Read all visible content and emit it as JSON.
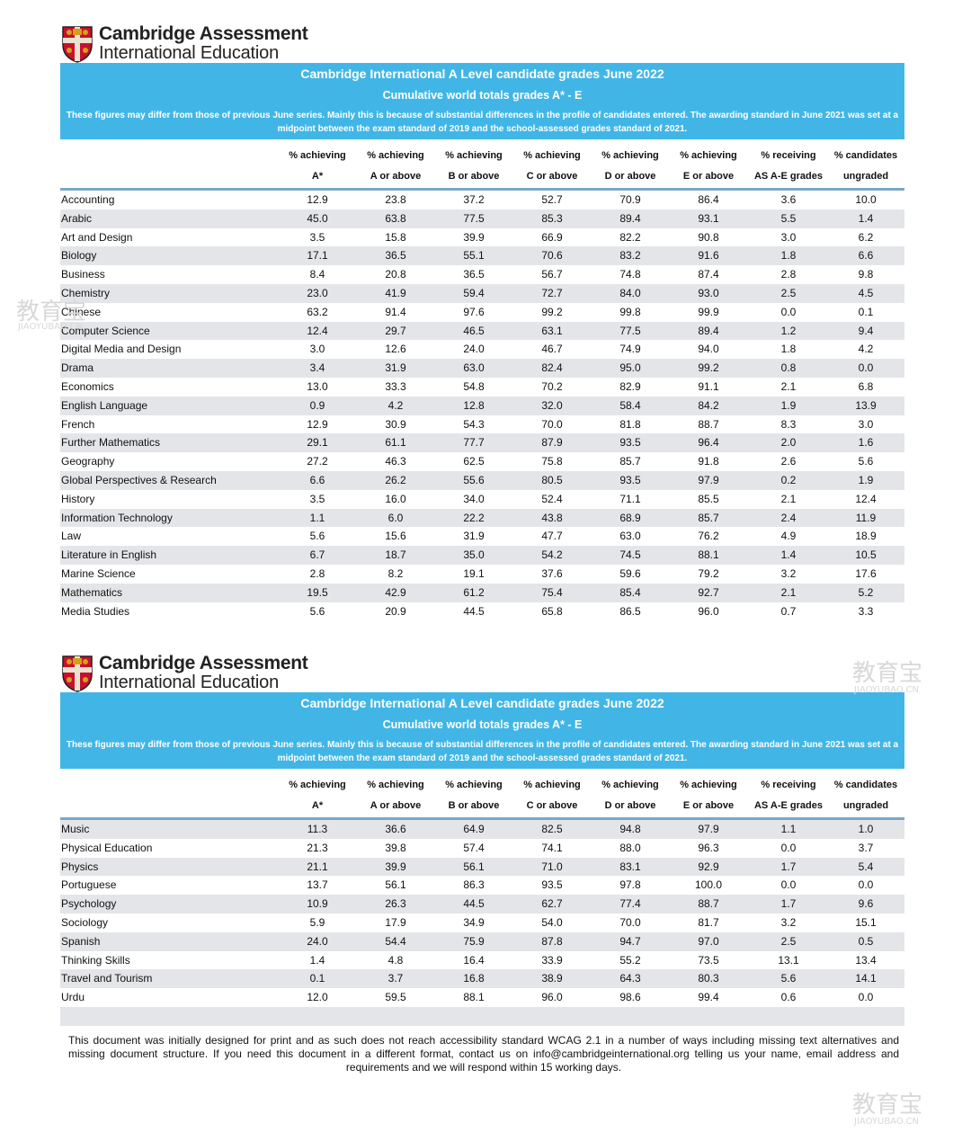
{
  "logo": {
    "line1": "Cambridge Assessment",
    "line2": "International Education"
  },
  "title": "Cambridge International A Level candidate grades June 2022",
  "subtitle": "Cumulative world totals grades A* - E",
  "note": "These figures may differ from those of previous June series. Mainly this is because of substantial differences in the profile of candidates entered. The awarding standard in June 2021 was set at a midpoint between the exam standard of 2019 and the school-assessed grades standard of 2021.",
  "headers": [
    [
      "% achieving",
      "A*"
    ],
    [
      "% achieving",
      "A or above"
    ],
    [
      "% achieving",
      "B or above"
    ],
    [
      "% achieving",
      "C or above"
    ],
    [
      "% achieving",
      "D or above"
    ],
    [
      "% achieving",
      "E or above"
    ],
    [
      "% receiving",
      "AS A-E grades"
    ],
    [
      "% candidates",
      "ungraded"
    ]
  ],
  "tables": [
    {
      "rows": [
        [
          "Accounting",
          "12.9",
          "23.8",
          "37.2",
          "52.7",
          "70.9",
          "86.4",
          "3.6",
          "10.0"
        ],
        [
          "Arabic",
          "45.0",
          "63.8",
          "77.5",
          "85.3",
          "89.4",
          "93.1",
          "5.5",
          "1.4"
        ],
        [
          "Art and Design",
          "3.5",
          "15.8",
          "39.9",
          "66.9",
          "82.2",
          "90.8",
          "3.0",
          "6.2"
        ],
        [
          "Biology",
          "17.1",
          "36.5",
          "55.1",
          "70.6",
          "83.2",
          "91.6",
          "1.8",
          "6.6"
        ],
        [
          "Business",
          "8.4",
          "20.8",
          "36.5",
          "56.7",
          "74.8",
          "87.4",
          "2.8",
          "9.8"
        ],
        [
          "Chemistry",
          "23.0",
          "41.9",
          "59.4",
          "72.7",
          "84.0",
          "93.0",
          "2.5",
          "4.5"
        ],
        [
          "Chinese",
          "63.2",
          "91.4",
          "97.6",
          "99.2",
          "99.8",
          "99.9",
          "0.0",
          "0.1"
        ],
        [
          "Computer Science",
          "12.4",
          "29.7",
          "46.5",
          "63.1",
          "77.5",
          "89.4",
          "1.2",
          "9.4"
        ],
        [
          "Digital Media and Design",
          "3.0",
          "12.6",
          "24.0",
          "46.7",
          "74.9",
          "94.0",
          "1.8",
          "4.2"
        ],
        [
          "Drama",
          "3.4",
          "31.9",
          "63.0",
          "82.4",
          "95.0",
          "99.2",
          "0.8",
          "0.0"
        ],
        [
          "Economics",
          "13.0",
          "33.3",
          "54.8",
          "70.2",
          "82.9",
          "91.1",
          "2.1",
          "6.8"
        ],
        [
          "English Language",
          "0.9",
          "4.2",
          "12.8",
          "32.0",
          "58.4",
          "84.2",
          "1.9",
          "13.9"
        ],
        [
          "French",
          "12.9",
          "30.9",
          "54.3",
          "70.0",
          "81.8",
          "88.7",
          "8.3",
          "3.0"
        ],
        [
          "Further Mathematics",
          "29.1",
          "61.1",
          "77.7",
          "87.9",
          "93.5",
          "96.4",
          "2.0",
          "1.6"
        ],
        [
          "Geography",
          "27.2",
          "46.3",
          "62.5",
          "75.8",
          "85.7",
          "91.8",
          "2.6",
          "5.6"
        ],
        [
          "Global Perspectives & Research",
          "6.6",
          "26.2",
          "55.6",
          "80.5",
          "93.5",
          "97.9",
          "0.2",
          "1.9"
        ],
        [
          "History",
          "3.5",
          "16.0",
          "34.0",
          "52.4",
          "71.1",
          "85.5",
          "2.1",
          "12.4"
        ],
        [
          "Information Technology",
          "1.1",
          "6.0",
          "22.2",
          "43.8",
          "68.9",
          "85.7",
          "2.4",
          "11.9"
        ],
        [
          "Law",
          "5.6",
          "15.6",
          "31.9",
          "47.7",
          "63.0",
          "76.2",
          "4.9",
          "18.9"
        ],
        [
          "Literature in English",
          "6.7",
          "18.7",
          "35.0",
          "54.2",
          "74.5",
          "88.1",
          "1.4",
          "10.5"
        ],
        [
          "Marine Science",
          "2.8",
          "8.2",
          "19.1",
          "37.6",
          "59.6",
          "79.2",
          "3.2",
          "17.6"
        ],
        [
          "Mathematics",
          "19.5",
          "42.9",
          "61.2",
          "75.4",
          "85.4",
          "92.7",
          "2.1",
          "5.2"
        ],
        [
          "Media Studies",
          "5.6",
          "20.9",
          "44.5",
          "65.8",
          "86.5",
          "96.0",
          "0.7",
          "3.3"
        ]
      ]
    },
    {
      "rows": [
        [
          "Music",
          "11.3",
          "36.6",
          "64.9",
          "82.5",
          "94.8",
          "97.9",
          "1.1",
          "1.0"
        ],
        [
          "Physical Education",
          "21.3",
          "39.8",
          "57.4",
          "74.1",
          "88.0",
          "96.3",
          "0.0",
          "3.7"
        ],
        [
          "Physics",
          "21.1",
          "39.9",
          "56.1",
          "71.0",
          "83.1",
          "92.9",
          "1.7",
          "5.4"
        ],
        [
          "Portuguese",
          "13.7",
          "56.1",
          "86.3",
          "93.5",
          "97.8",
          "100.0",
          "0.0",
          "0.0"
        ],
        [
          "Psychology",
          "10.9",
          "26.3",
          "44.5",
          "62.7",
          "77.4",
          "88.7",
          "1.7",
          "9.6"
        ],
        [
          "Sociology",
          "5.9",
          "17.9",
          "34.9",
          "54.0",
          "70.0",
          "81.7",
          "3.2",
          "15.1"
        ],
        [
          "Spanish",
          "24.0",
          "54.4",
          "75.9",
          "87.8",
          "94.7",
          "97.0",
          "2.5",
          "0.5"
        ],
        [
          "Thinking Skills",
          "1.4",
          "4.8",
          "16.4",
          "33.9",
          "55.2",
          "73.5",
          "13.1",
          "13.4"
        ],
        [
          "Travel and Tourism",
          "0.1",
          "3.7",
          "16.8",
          "38.9",
          "64.3",
          "80.3",
          "5.6",
          "14.1"
        ],
        [
          "Urdu",
          "12.0",
          "59.5",
          "88.1",
          "96.0",
          "98.6",
          "99.4",
          "0.6",
          "0.0"
        ]
      ]
    }
  ],
  "footer": "This document was initially designed for print and as such does not reach accessibility standard WCAG 2.1 in a number of ways including missing text alternatives and missing document structure. If you need this document in a different format, contact us on info@cambridgeinternational.org telling us your name, email address and requirements and we will respond within 15 working days.",
  "watermark": {
    "brand": "教育宝",
    "site": "JIAOYUBAO.CN"
  }
}
